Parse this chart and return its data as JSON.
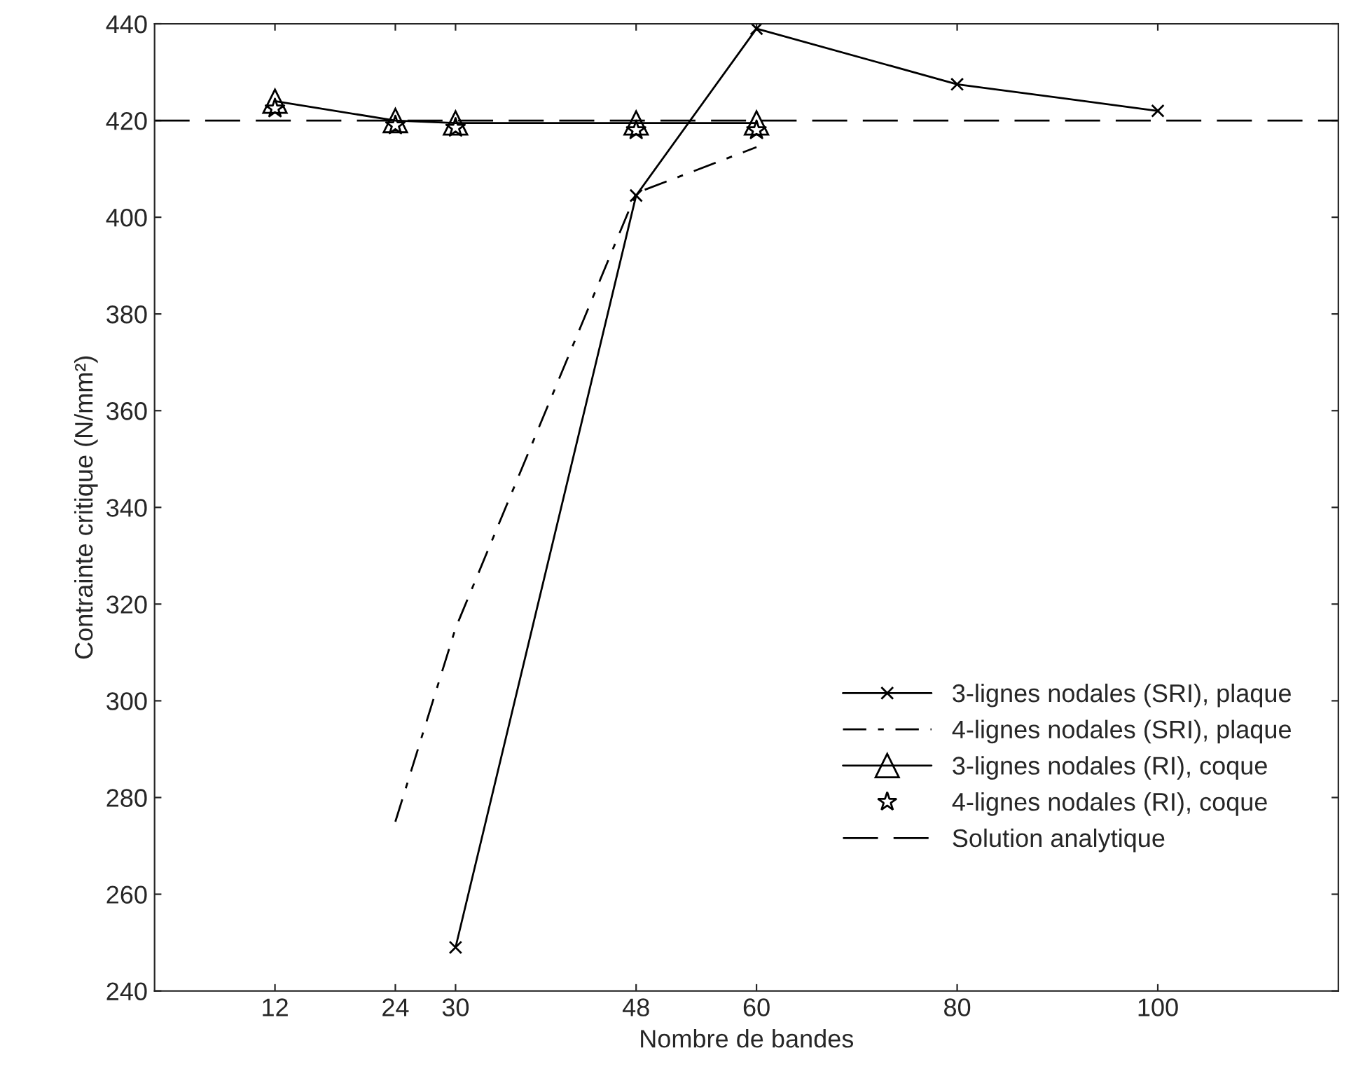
{
  "chart_data": {
    "type": "line",
    "xlabel": "Nombre de bandes",
    "ylabel": "Contrainte critique (N/mm²)",
    "xlim": [
      0,
      118
    ],
    "xticks": [
      12,
      24,
      30,
      48,
      60,
      80,
      100
    ],
    "ylim": [
      240,
      440
    ],
    "yticks": [
      240,
      260,
      280,
      300,
      320,
      340,
      360,
      380,
      400,
      420,
      440
    ],
    "grid": false,
    "legend": "bottom right",
    "series": [
      {
        "name": "3-lignes nodales (SRI), plaque",
        "color": "#000000",
        "marker": "cross",
        "line_style": "solid",
        "x": [
          30,
          48,
          60,
          80,
          100
        ],
        "values": [
          249,
          404.5,
          439,
          427.5,
          422
        ]
      },
      {
        "name": "4-lignes nodales (SRI), plaque",
        "color": "#000000",
        "marker": "none",
        "line_style": "dashdot",
        "x": [
          24,
          30,
          48,
          60
        ],
        "values": [
          275,
          315,
          405,
          414.5
        ]
      },
      {
        "name": "3-lignes nodales (RI), coque",
        "color": "#000000",
        "marker": "triangle",
        "line_style": "solid",
        "x": [
          12,
          24,
          30,
          48,
          60
        ],
        "values": [
          424,
          420,
          419.5,
          419.5,
          419.5
        ]
      },
      {
        "name": "4-lignes nodales (RI), coque",
        "type": "scatter",
        "color": "#000000",
        "marker": "star",
        "x": [
          12,
          24,
          30,
          48,
          60
        ],
        "values": [
          422.5,
          419,
          418.5,
          418,
          418
        ]
      },
      {
        "name": "Solution analytique",
        "color": "#000000",
        "marker": "none",
        "line_style": "longdash",
        "x": [
          0,
          118
        ],
        "values": [
          420,
          420
        ]
      }
    ]
  }
}
